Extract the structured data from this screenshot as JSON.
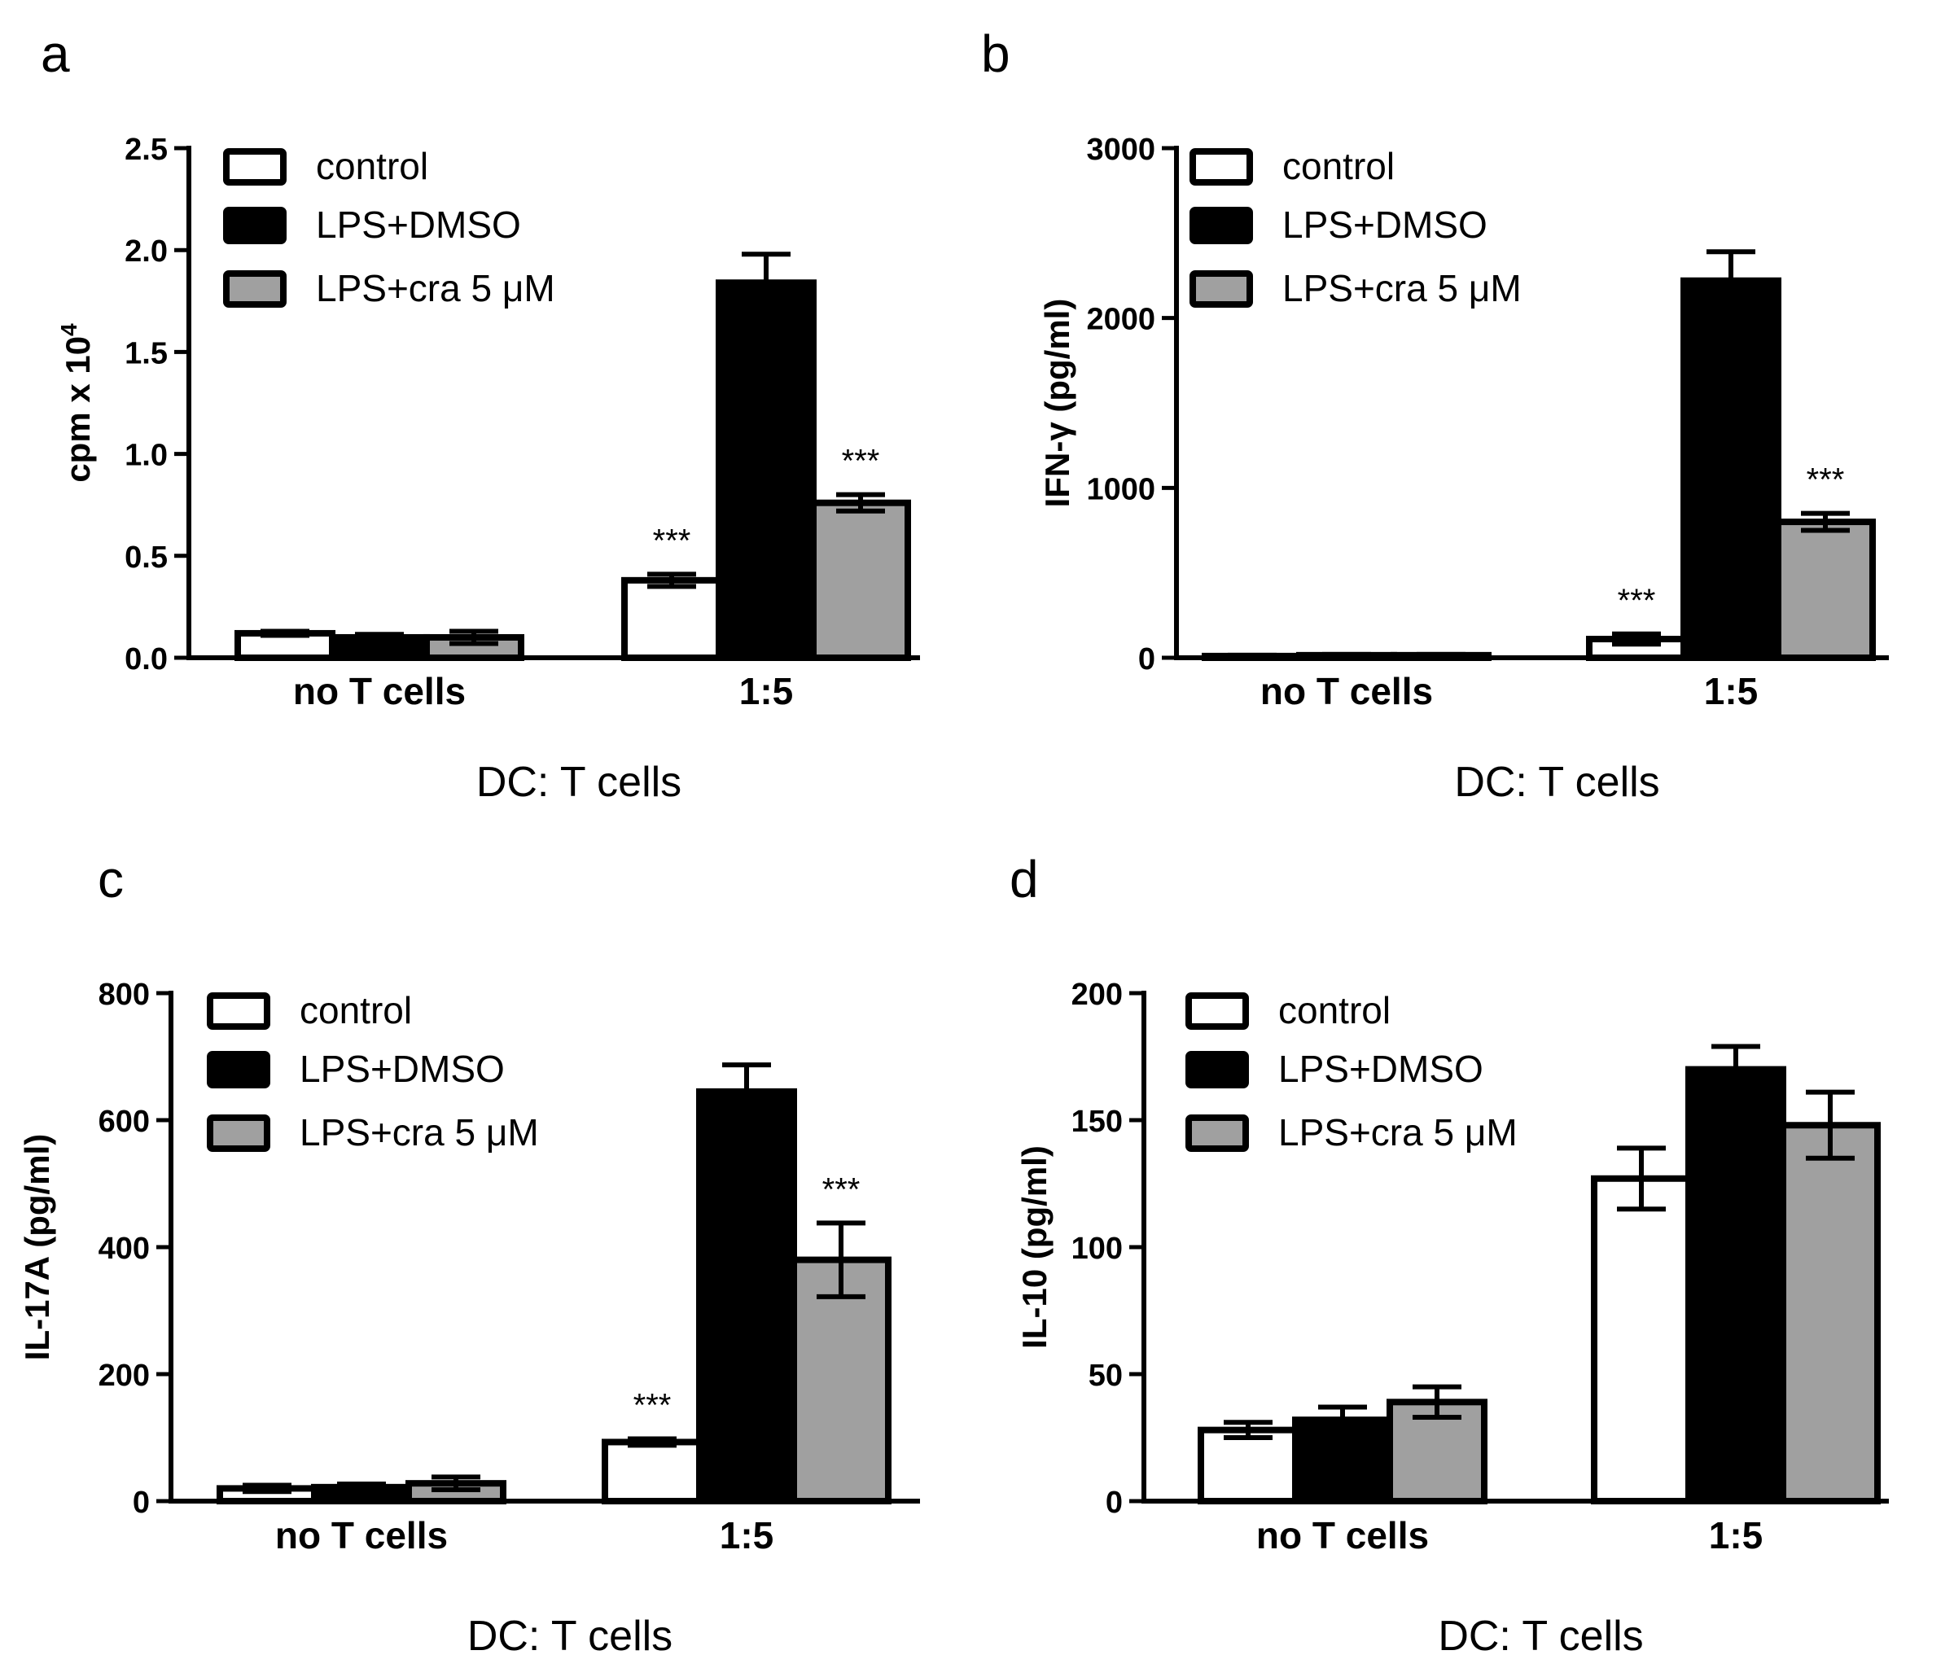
{
  "figure": {
    "legend": [
      {
        "name": "control",
        "color": "#ffffff"
      },
      {
        "name": "LPS+DMSO",
        "color": "#000000"
      },
      {
        "name": "LPS+cra 5 μM",
        "color": "#a0a0a0"
      }
    ]
  },
  "chart_data": [
    {
      "panel": "a",
      "type": "bar",
      "title": "",
      "xlabel": "DC: T cells",
      "ylabel": "cpm x 10",
      "ylabel_superscript": "4",
      "categories": [
        "no T cells",
        "1:5"
      ],
      "ylim": [
        0,
        2.5
      ],
      "ticks": [
        0.0,
        0.5,
        1.0,
        1.5,
        2.0,
        2.5
      ],
      "tick_labels": [
        "0.0",
        "0.5",
        "1.0",
        "1.5",
        "2.0",
        "2.5"
      ],
      "legend_position": "top-left",
      "series": [
        {
          "name": "control",
          "values": [
            0.12,
            0.38
          ],
          "errors": [
            0.01,
            0.03
          ]
        },
        {
          "name": "LPS+DMSO",
          "values": [
            0.1,
            1.84
          ],
          "errors": [
            0.015,
            0.14
          ]
        },
        {
          "name": "LPS+cra 5 μM",
          "values": [
            0.1,
            0.76
          ],
          "errors": [
            0.03,
            0.04
          ]
        }
      ],
      "annotations": [
        {
          "text": "***",
          "category": "1:5",
          "series": "control"
        },
        {
          "text": "***",
          "category": "1:5",
          "series": "LPS+cra 5 μM"
        }
      ]
    },
    {
      "panel": "b",
      "type": "bar",
      "title": "",
      "xlabel": "DC: T cells",
      "ylabel": "IFN-γ (pg/ml)",
      "categories": [
        "no T cells",
        "1:5"
      ],
      "ylim": [
        0,
        3000
      ],
      "ticks": [
        0,
        1000,
        2000,
        3000
      ],
      "tick_labels": [
        "0",
        "1000",
        "2000",
        "3000"
      ],
      "legend_position": "top-left",
      "series": [
        {
          "name": "control",
          "values": [
            10,
            110
          ],
          "errors": [
            5,
            30
          ]
        },
        {
          "name": "LPS+DMSO",
          "values": [
            15,
            2220
          ],
          "errors": [
            5,
            170
          ]
        },
        {
          "name": "LPS+cra 5 μM",
          "values": [
            15,
            800
          ],
          "errors": [
            5,
            50
          ]
        }
      ],
      "annotations": [
        {
          "text": "***",
          "category": "1:5",
          "series": "control"
        },
        {
          "text": "***",
          "category": "1:5",
          "series": "LPS+cra 5 μM"
        }
      ]
    },
    {
      "panel": "c",
      "type": "bar",
      "title": "",
      "xlabel": "DC: T cells",
      "ylabel": "IL-17A (pg/ml)",
      "categories": [
        "no T cells",
        "1:5"
      ],
      "ylim": [
        0,
        800
      ],
      "ticks": [
        0,
        200,
        400,
        600,
        800
      ],
      "tick_labels": [
        "0",
        "200",
        "400",
        "600",
        "800"
      ],
      "legend_position": "top-left",
      "series": [
        {
          "name": "control",
          "values": [
            20,
            93
          ],
          "errors": [
            5,
            5
          ]
        },
        {
          "name": "LPS+DMSO",
          "values": [
            22,
            645
          ],
          "errors": [
            5,
            42
          ]
        },
        {
          "name": "LPS+cra 5 μM",
          "values": [
            28,
            380
          ],
          "errors": [
            10,
            58
          ]
        }
      ],
      "annotations": [
        {
          "text": "***",
          "category": "1:5",
          "series": "control"
        },
        {
          "text": "***",
          "category": "1:5",
          "series": "LPS+cra 5 μM"
        }
      ]
    },
    {
      "panel": "d",
      "type": "bar",
      "title": "",
      "xlabel": "DC: T cells",
      "ylabel": "IL-10 (pg/ml)",
      "categories": [
        "no T cells",
        "1:5"
      ],
      "ylim": [
        0,
        200
      ],
      "ticks": [
        0,
        50,
        100,
        150,
        200
      ],
      "tick_labels": [
        "0",
        "50",
        "100",
        "150",
        "200"
      ],
      "legend_position": "top-left",
      "series": [
        {
          "name": "control",
          "values": [
            28,
            127
          ],
          "errors": [
            3,
            12
          ]
        },
        {
          "name": "LPS+DMSO",
          "values": [
            32,
            170
          ],
          "errors": [
            5,
            9
          ]
        },
        {
          "name": "LPS+cra 5 μM",
          "values": [
            39,
            148
          ],
          "errors": [
            6,
            13
          ]
        }
      ],
      "annotations": []
    }
  ]
}
